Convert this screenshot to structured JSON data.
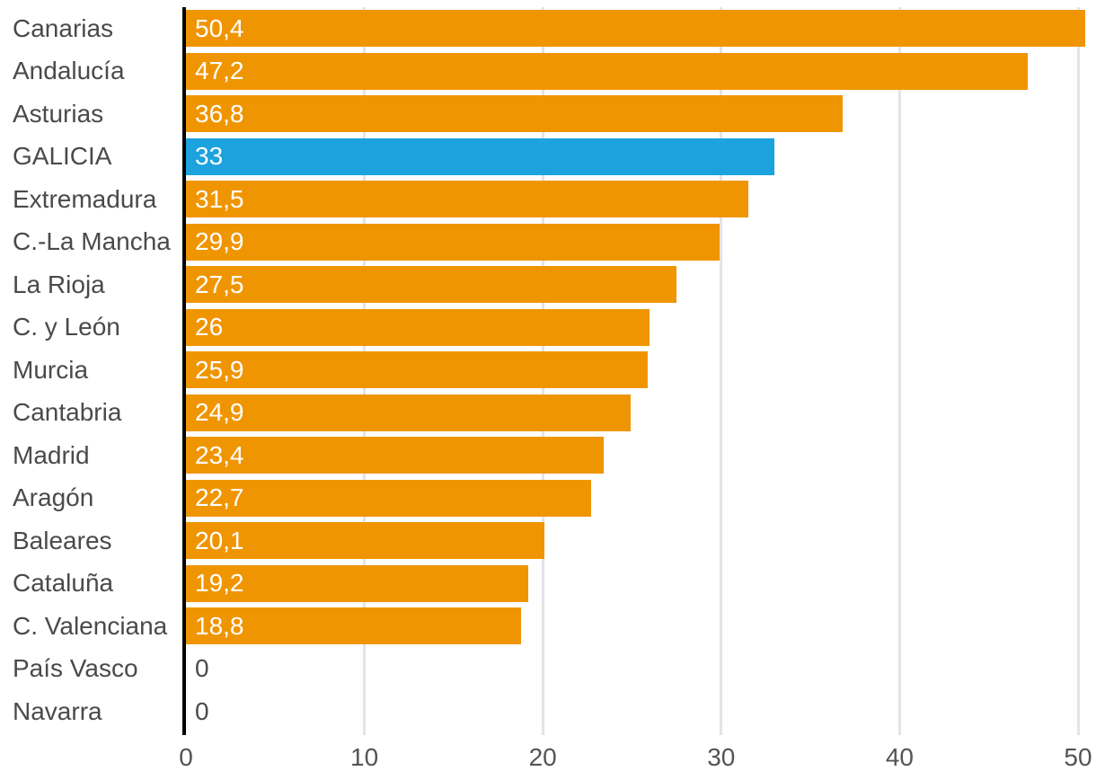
{
  "chart_data": {
    "type": "bar",
    "orientation": "horizontal",
    "categories": [
      "Canarias",
      "Andalucía",
      "Asturias",
      "GALICIA",
      "Extremadura",
      "C.-La Mancha",
      "La Rioja",
      "C. y León",
      "Murcia",
      "Cantabria",
      "Madrid",
      "Aragón",
      "Baleares",
      "Cataluña",
      "C. Valenciana",
      "País Vasco",
      "Navarra"
    ],
    "values": [
      50.4,
      47.2,
      36.8,
      33,
      31.5,
      29.9,
      27.5,
      26,
      25.9,
      24.9,
      23.4,
      22.7,
      20.1,
      19.2,
      18.8,
      0,
      0
    ],
    "value_labels": [
      "50,4",
      "47,2",
      "36,8",
      "33",
      "31,5",
      "29,9",
      "27,5",
      "26",
      "25,9",
      "24,9",
      "23,4",
      "22,7",
      "20,1",
      "19,2",
      "18,8",
      "0",
      "0"
    ],
    "highlight_category": "GALICIA",
    "highlight_index": 3,
    "title": "",
    "xlabel": "",
    "ylabel": "",
    "xlim": [
      0,
      50
    ],
    "xticks": [
      0,
      10,
      20,
      30,
      40,
      50
    ],
    "xtick_labels": [
      "0",
      "10",
      "20",
      "30",
      "40",
      "50"
    ],
    "grid": "vertical",
    "legend": "none",
    "colors": {
      "bar": "#F09502",
      "highlight": "#1CA2DC",
      "category_label": "#4A4A4A",
      "tick_label": "#545454",
      "gridline": "#E4E4E4",
      "axis_line": "#000000",
      "value_text": "#FFFFFF",
      "zero_value_text": "#4A4A4A",
      "background": "#FFFFFF"
    }
  }
}
